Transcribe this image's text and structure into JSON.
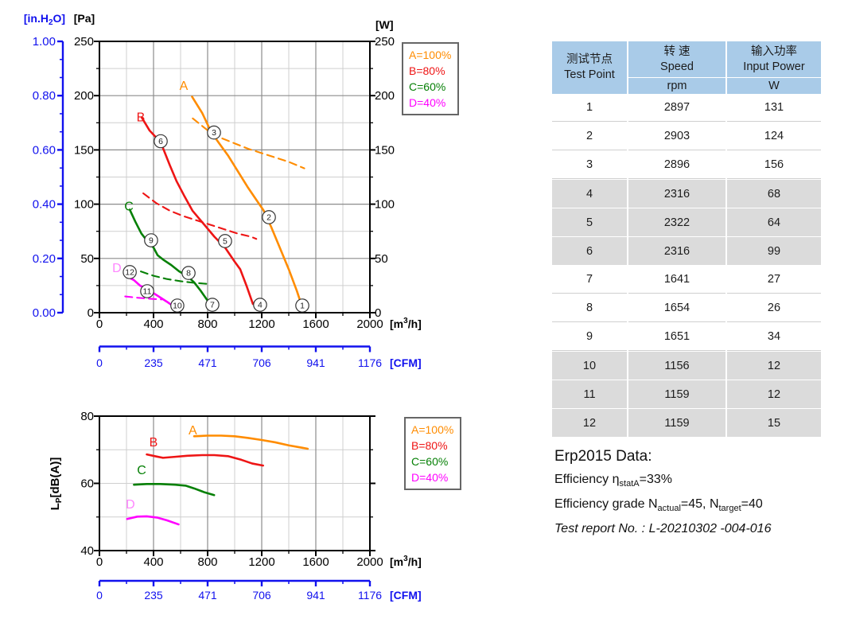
{
  "colors": {
    "orange": "#FF8C00",
    "red": "#EE1515",
    "green": "#068006",
    "magenta": "#FF00FF",
    "magenta_label": "#FF85FF",
    "blue": "#1111EE",
    "grid_light": "#CFCFCF",
    "grid_dark": "#8C8C8C",
    "axis_black": "#000000",
    "marker_stroke": "#333333",
    "table_header_bg": "#A9CBE8",
    "table_row_gray": "#DBDBDB"
  },
  "legend": {
    "items": [
      {
        "label": "A=100%",
        "color": "#FF8C00"
      },
      {
        "label": "B=80%",
        "color": "#EE1515"
      },
      {
        "label": "C=60%",
        "color": "#068006"
      },
      {
        "label": "D=40%",
        "color": "#FF00FF"
      }
    ]
  },
  "chart_data": [
    {
      "id": "pressure-power-curves",
      "type": "line",
      "x_axis": {
        "unit_pre": "[m",
        "unit_sup": "3",
        "unit_post": "/h]",
        "ticks": [
          "0",
          "400",
          "800",
          "1200",
          "1600",
          "2000"
        ],
        "range": [
          0,
          2000
        ],
        "minor_step": 200
      },
      "x_axis_cfm": {
        "unit": "[CFM]",
        "ticks": [
          "0",
          "235",
          "471",
          "706",
          "941",
          "1176"
        ]
      },
      "y_axis_inh2o": {
        "unit_pre": "[in.H",
        "unit_sub": "2",
        "unit_post": "O]",
        "ticks": [
          "1.00",
          "0.80",
          "0.60",
          "0.40",
          "0.20",
          "0.00"
        ]
      },
      "y_axis_pa": {
        "unit": "[Pa]",
        "ticks": [
          "250",
          "200",
          "150",
          "100",
          "50",
          "0"
        ],
        "range": [
          0,
          250
        ]
      },
      "y_axis_w": {
        "unit": "[W]",
        "ticks": [
          "250",
          "200",
          "150",
          "100",
          "50",
          "0"
        ],
        "range": [
          0,
          250
        ]
      },
      "series": [
        {
          "name": "A-pressure",
          "style": "solid",
          "color": "#FF8C00",
          "points": [
            [
              685,
              199
            ],
            [
              760,
              184
            ],
            [
              824,
              167
            ],
            [
              880,
              157
            ],
            [
              950,
              145
            ],
            [
              1020,
              131
            ],
            [
              1100,
              115
            ],
            [
              1160,
              104
            ],
            [
              1215,
              94
            ],
            [
              1270,
              79
            ],
            [
              1330,
              61
            ],
            [
              1400,
              40
            ],
            [
              1460,
              20
            ],
            [
              1492,
              8
            ]
          ]
        },
        {
          "name": "B-pressure",
          "style": "solid",
          "color": "#EE1515",
          "points": [
            [
              312,
              180
            ],
            [
              370,
              168
            ],
            [
              453,
              157
            ],
            [
              520,
              136
            ],
            [
              571,
              121
            ],
            [
              630,
              107
            ],
            [
              688,
              94
            ],
            [
              776,
              81
            ],
            [
              850,
              70
            ],
            [
              929,
              60
            ],
            [
              1000,
              47
            ],
            [
              1041,
              40
            ],
            [
              1090,
              24
            ],
            [
              1135,
              8
            ]
          ]
        },
        {
          "name": "C-pressure",
          "style": "solid",
          "color": "#068006",
          "points": [
            [
              224,
              95
            ],
            [
              265,
              84
            ],
            [
              310,
              73
            ],
            [
              360,
              65
            ],
            [
              400,
              60
            ],
            [
              430,
              53
            ],
            [
              470,
              49
            ],
            [
              530,
              44
            ],
            [
              590,
              38
            ],
            [
              647,
              34
            ],
            [
              700,
              28
            ],
            [
              750,
              20
            ],
            [
              806,
              10
            ]
          ]
        },
        {
          "name": "D-pressure",
          "style": "solid",
          "color": "#FF00FF",
          "points": [
            [
              210,
              33
            ],
            [
              255,
              30
            ],
            [
              300,
              25
            ],
            [
              350,
              22
            ],
            [
              400,
              18
            ],
            [
              450,
              14
            ],
            [
              500,
              10
            ],
            [
              535,
              7
            ]
          ]
        },
        {
          "name": "A-power",
          "style": "dashed",
          "color": "#FF8C00",
          "points": [
            [
              690,
              179
            ],
            [
              800,
              168
            ],
            [
              900,
              161
            ],
            [
              1000,
              156
            ],
            [
              1100,
              151
            ],
            [
              1200,
              147
            ],
            [
              1300,
              143
            ],
            [
              1400,
              139
            ],
            [
              1515,
              133
            ]
          ]
        },
        {
          "name": "B-power",
          "style": "dashed",
          "color": "#EE1515",
          "points": [
            [
              324,
              110
            ],
            [
              420,
              101
            ],
            [
              520,
              94
            ],
            [
              620,
              89
            ],
            [
              720,
              85
            ],
            [
              820,
              81
            ],
            [
              920,
              77
            ],
            [
              1020,
              73
            ],
            [
              1120,
              70
            ],
            [
              1160,
              68
            ]
          ]
        },
        {
          "name": "C-power",
          "style": "dashed",
          "color": "#068006",
          "points": [
            [
              306,
              38
            ],
            [
              400,
              34
            ],
            [
              500,
              31
            ],
            [
              600,
              29
            ],
            [
              700,
              27.5
            ],
            [
              806,
              26.5
            ]
          ]
        },
        {
          "name": "D-power",
          "style": "dashed",
          "color": "#FF00FF",
          "points": [
            [
              190,
              15
            ],
            [
              280,
              13.8
            ],
            [
              380,
              12.8
            ],
            [
              460,
              12.2
            ]
          ]
        }
      ],
      "curve_labels": [
        {
          "text": "A",
          "x": 623,
          "y": 209,
          "color": "#FF8C00"
        },
        {
          "text": "B",
          "x": 306,
          "y": 180,
          "color": "#EE1515"
        },
        {
          "text": "C",
          "x": 218,
          "y": 98,
          "color": "#068006"
        },
        {
          "text": "D",
          "x": 129,
          "y": 41,
          "color": "#FF85FF"
        }
      ],
      "test_point_markers": [
        {
          "n": "1",
          "x": 1500,
          "y": 6.6
        },
        {
          "n": "2",
          "x": 1253,
          "y": 88
        },
        {
          "n": "3",
          "x": 847,
          "y": 166
        },
        {
          "n": "4",
          "x": 1188,
          "y": 7.3
        },
        {
          "n": "5",
          "x": 929,
          "y": 66
        },
        {
          "n": "6",
          "x": 453,
          "y": 158
        },
        {
          "n": "7",
          "x": 835,
          "y": 7.3
        },
        {
          "n": "8",
          "x": 659,
          "y": 36.6
        },
        {
          "n": "9",
          "x": 382,
          "y": 66.7
        },
        {
          "n": "10",
          "x": 576,
          "y": 6.6
        },
        {
          "n": "11",
          "x": 353,
          "y": 19.8
        },
        {
          "n": "12",
          "x": 224,
          "y": 37.4
        }
      ]
    },
    {
      "id": "noise-curves",
      "type": "line",
      "x_axis": {
        "unit_pre": "[m",
        "unit_sup": "3",
        "unit_post": "/h]",
        "ticks": [
          "0",
          "400",
          "800",
          "1200",
          "1600",
          "2000"
        ],
        "range": [
          0,
          2000
        ],
        "minor_step": 200
      },
      "x_axis_cfm": {
        "unit": "[CFM]",
        "ticks": [
          "0",
          "235",
          "471",
          "706",
          "941",
          "1176"
        ]
      },
      "y_axis": {
        "label_pre": "L",
        "label_sub": "P",
        "label_post": "[dB(A)]",
        "ticks": [
          "80",
          "60",
          "40"
        ],
        "range": [
          40,
          80
        ]
      },
      "series": [
        {
          "name": "A-noise",
          "style": "solid",
          "color": "#FF8C00",
          "points": [
            [
              700,
              74
            ],
            [
              800,
              74.2
            ],
            [
              900,
              74.2
            ],
            [
              1000,
              74
            ],
            [
              1100,
              73.5
            ],
            [
              1200,
              72.9
            ],
            [
              1300,
              72.2
            ],
            [
              1400,
              71.3
            ],
            [
              1540,
              70.3
            ]
          ]
        },
        {
          "name": "B-noise",
          "style": "solid",
          "color": "#EE1515",
          "points": [
            [
              350,
              68.6
            ],
            [
              420,
              68
            ],
            [
              470,
              67.6
            ],
            [
              560,
              67.9
            ],
            [
              650,
              68.2
            ],
            [
              760,
              68.4
            ],
            [
              850,
              68.4
            ],
            [
              950,
              68.1
            ],
            [
              1050,
              67
            ],
            [
              1130,
              65.9
            ],
            [
              1210,
              65.3
            ]
          ]
        },
        {
          "name": "C-noise",
          "style": "solid",
          "color": "#068006",
          "points": [
            [
              255,
              59.6
            ],
            [
              350,
              59.8
            ],
            [
              450,
              59.8
            ],
            [
              560,
              59.6
            ],
            [
              640,
              59.3
            ],
            [
              700,
              58.5
            ],
            [
              780,
              57.3
            ],
            [
              848,
              56.5
            ]
          ]
        },
        {
          "name": "D-noise",
          "style": "solid",
          "color": "#FF00FF",
          "points": [
            [
              205,
              49.4
            ],
            [
              280,
              50.1
            ],
            [
              350,
              50.2
            ],
            [
              430,
              49.8
            ],
            [
              500,
              49
            ],
            [
              585,
              47.8
            ]
          ]
        }
      ],
      "curve_labels": [
        {
          "text": "A",
          "x": 690,
          "y": 75.7,
          "color": "#FF8C00"
        },
        {
          "text": "B",
          "x": 400,
          "y": 72.2,
          "color": "#EE1515"
        },
        {
          "text": "C",
          "x": 312,
          "y": 63.9,
          "color": "#068006"
        },
        {
          "text": "D",
          "x": 229,
          "y": 53.7,
          "color": "#FF85FF"
        }
      ]
    }
  ],
  "table": {
    "header": {
      "col1_zh": "测试节点",
      "col1_en": "Test Point",
      "col2_zh": "转 速",
      "col2_en": "Speed",
      "col2_unit": "rpm",
      "col3_zh": "输入功率",
      "col3_en": "Input Power",
      "col3_unit": "W"
    },
    "rows": [
      {
        "point": "1",
        "speed": "2897",
        "power": "131"
      },
      {
        "point": "2",
        "speed": "2903",
        "power": "124"
      },
      {
        "point": "3",
        "speed": "2896",
        "power": "156"
      },
      {
        "point": "4",
        "speed": "2316",
        "power": "68"
      },
      {
        "point": "5",
        "speed": "2322",
        "power": "64"
      },
      {
        "point": "6",
        "speed": "2316",
        "power": "99"
      },
      {
        "point": "7",
        "speed": "1641",
        "power": "27"
      },
      {
        "point": "8",
        "speed": "1654",
        "power": "26"
      },
      {
        "point": "9",
        "speed": "1651",
        "power": "34"
      },
      {
        "point": "10",
        "speed": "1156",
        "power": "12"
      },
      {
        "point": "11",
        "speed": "1159",
        "power": "12"
      },
      {
        "point": "12",
        "speed": "1159",
        "power": "15"
      }
    ]
  },
  "erp": {
    "title": "Erp2015 Data:",
    "line1_pre": "Efficiency η",
    "line1_sub": "statA",
    "line1_post": "=33%",
    "line2_pre": "Efficiency grade N",
    "line2_sub1": "actual",
    "line2_mid": "=45, N",
    "line2_sub2": "target",
    "line2_post": "=40",
    "line3": "Test report No.  : L-20210302 -004-016"
  }
}
